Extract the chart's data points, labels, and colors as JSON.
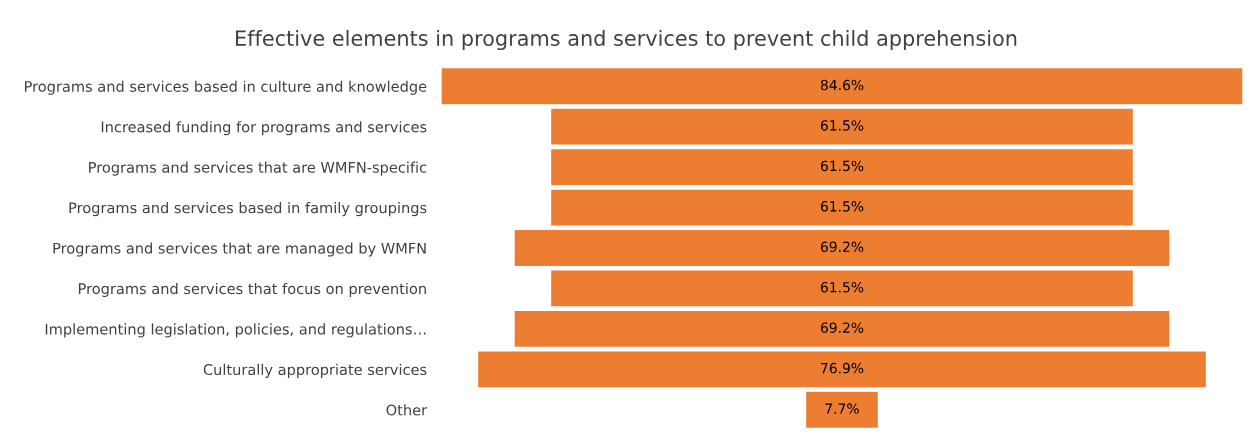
{
  "chart_data": {
    "type": "other",
    "title": "Effective elements in programs and services to prevent child apprehension",
    "categories": [
      "Programs and services based in culture and knowledge",
      "Increased funding for programs and services",
      "Programs and services that are WMFN-specific",
      "Programs and services based in family groupings",
      "Programs and services that are managed by WMFN",
      "Programs and services that focus on prevention",
      "Implementing legislation, policies, and regulations…",
      "Culturally appropriate services",
      "Other"
    ],
    "values": [
      84.6,
      61.5,
      61.5,
      61.5,
      69.2,
      61.5,
      69.2,
      76.9,
      7.7
    ],
    "value_labels": [
      "84.6%",
      "61.5%",
      "61.5%",
      "61.5%",
      "69.2%",
      "61.5%",
      "69.2%",
      "76.9%",
      "7.7%"
    ],
    "color": "#ed7d31"
  }
}
